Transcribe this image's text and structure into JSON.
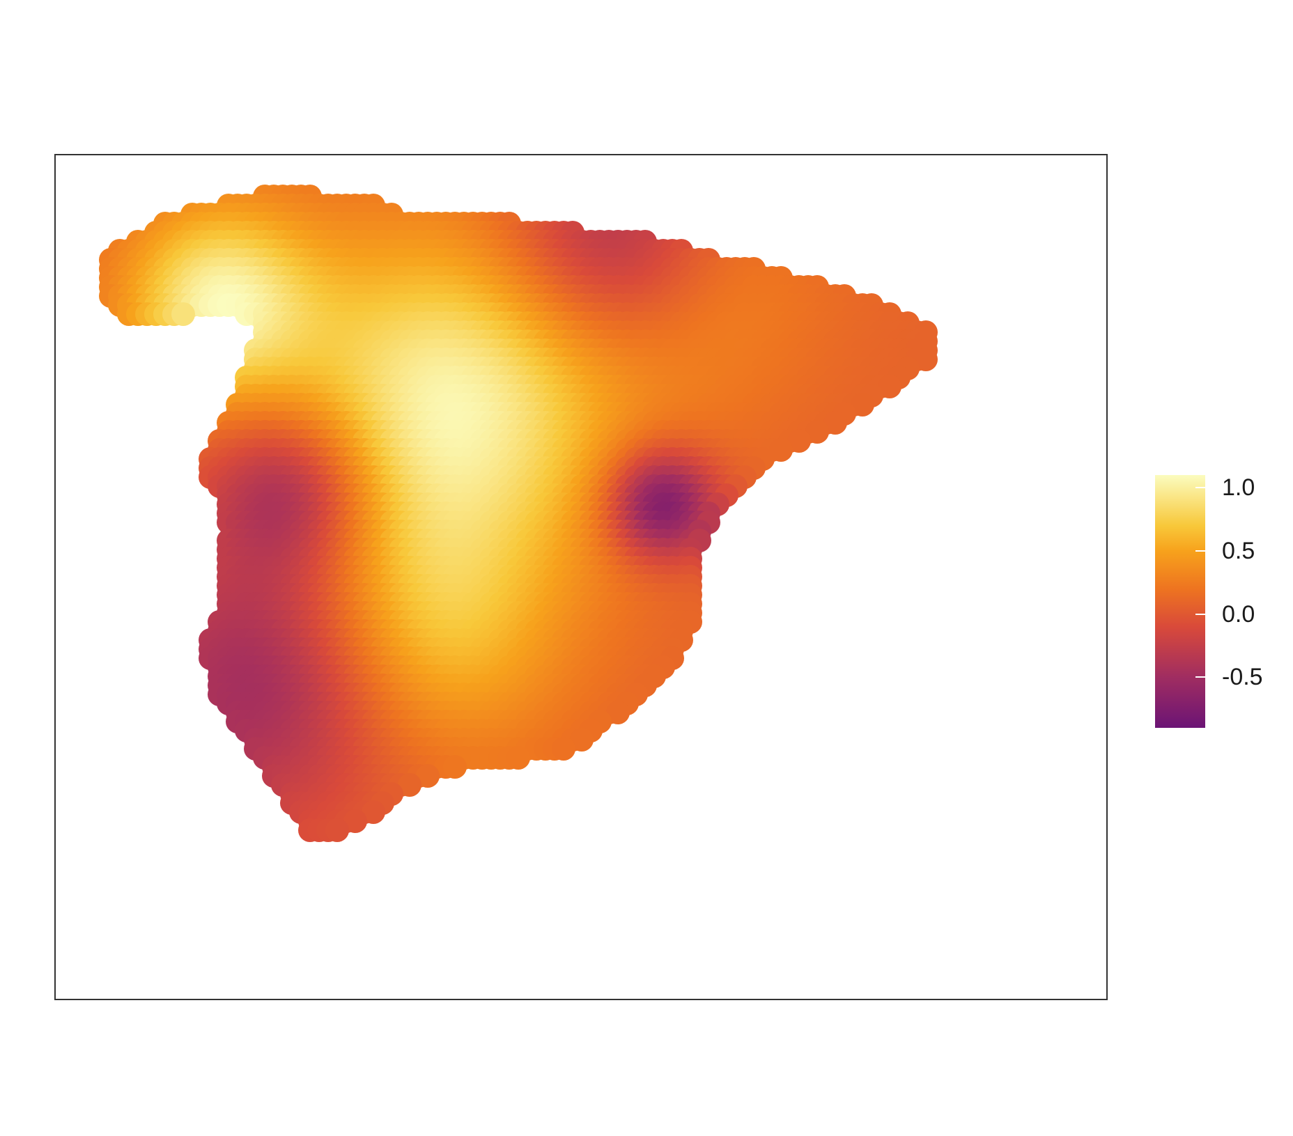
{
  "map": {
    "type": "heatmap",
    "region": "Spain",
    "colormap": "inferno-like",
    "colors": {
      "low": "#6b1475",
      "mid": "#e05a2b",
      "high": "#f9f7a3",
      "frame": "#333333"
    },
    "hotspots": [
      {
        "name": "northwest",
        "value": 1.0
      },
      {
        "name": "center",
        "value": 1.05
      },
      {
        "name": "south",
        "value": 0.65
      },
      {
        "name": "northeast",
        "value": 0.3
      }
    ],
    "coldspots": [
      {
        "name": "east-coast",
        "value": -0.85
      },
      {
        "name": "southwest",
        "value": -0.55
      },
      {
        "name": "west",
        "value": -0.6
      },
      {
        "name": "north",
        "value": -0.5
      }
    ]
  },
  "legend": {
    "min": -0.9,
    "max": 1.1,
    "ticks": [
      {
        "value": 1.0,
        "label": "1.0"
      },
      {
        "value": 0.5,
        "label": "0.5"
      },
      {
        "value": 0.0,
        "label": "0.0"
      },
      {
        "value": -0.5,
        "label": "-0.5"
      }
    ]
  }
}
